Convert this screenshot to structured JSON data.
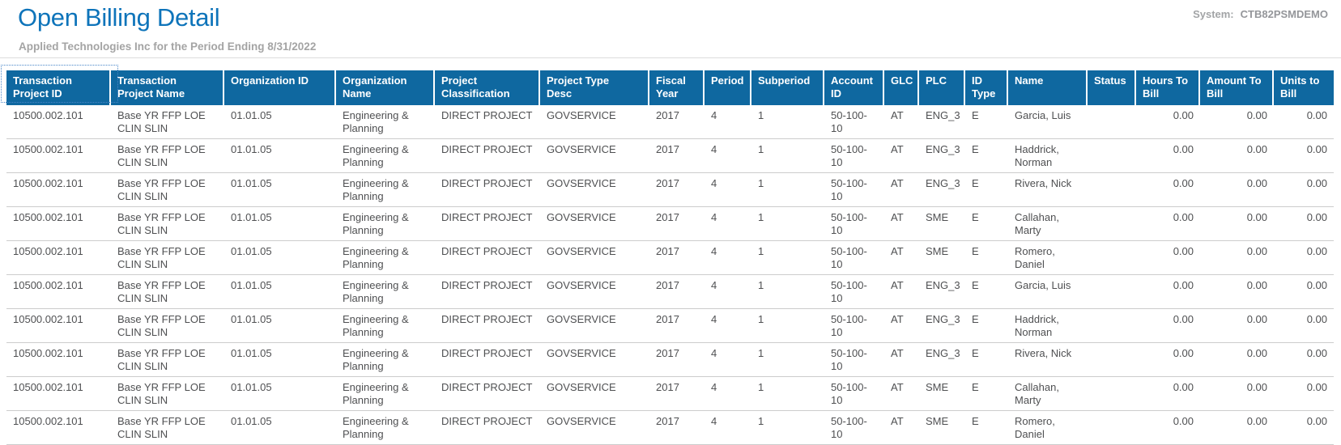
{
  "page": {
    "title": "Open Billing Detail",
    "subtitle": "Applied Technologies Inc for the Period Ending 8/31/2022",
    "system_label": "System:",
    "system_value": "CTB82PSMDEMO"
  },
  "colors": {
    "title_blue": "#0e74ba",
    "header_bg": "#0f68a0",
    "header_text": "#ffffff",
    "subtitle_gray": "#a4a4a4",
    "body_text": "#4f5052",
    "row_border": "#cccccc",
    "focus_outline": "#4a86c8"
  },
  "table": {
    "columns": [
      {
        "key": "txn_project_id",
        "label": "Transaction Project ID"
      },
      {
        "key": "txn_project_name",
        "label": "Transaction Project Name"
      },
      {
        "key": "org_id",
        "label": "Organization ID"
      },
      {
        "key": "org_name",
        "label": "Organization Name"
      },
      {
        "key": "project_classification",
        "label": "Project Classification"
      },
      {
        "key": "project_type_desc",
        "label": "Project Type Desc"
      },
      {
        "key": "fiscal_year",
        "label": "Fiscal Year"
      },
      {
        "key": "period",
        "label": "Period"
      },
      {
        "key": "subperiod",
        "label": "Subperiod"
      },
      {
        "key": "account_id",
        "label": "Account ID"
      },
      {
        "key": "glc",
        "label": "GLC"
      },
      {
        "key": "plc",
        "label": "PLC"
      },
      {
        "key": "id_type",
        "label": "ID Type"
      },
      {
        "key": "name",
        "label": "Name"
      },
      {
        "key": "status",
        "label": "Status"
      },
      {
        "key": "hours_to_bill",
        "label": "Hours To Bill"
      },
      {
        "key": "amount_to_bill",
        "label": "Amount To Bill"
      },
      {
        "key": "units_to_bill",
        "label": "Units to Bill"
      }
    ],
    "rows": [
      {
        "txn_project_id": "10500.002.101",
        "txn_project_name": "Base YR FFP LOE CLIN SLIN",
        "org_id": "01.01.05",
        "org_name": "Engineering & Planning",
        "project_classification": "DIRECT PROJECT",
        "project_type_desc": "GOVSERVICE",
        "fiscal_year": "2017",
        "period": "4",
        "subperiod": "1",
        "account_id": "50-100-10",
        "glc": "AT",
        "plc": "ENG_3",
        "id_type": "E",
        "name": "Garcia, Luis",
        "status": "",
        "hours_to_bill": "0.00",
        "amount_to_bill": "0.00",
        "units_to_bill": "0.00"
      },
      {
        "txn_project_id": "10500.002.101",
        "txn_project_name": "Base YR FFP LOE CLIN SLIN",
        "org_id": "01.01.05",
        "org_name": "Engineering & Planning",
        "project_classification": "DIRECT PROJECT",
        "project_type_desc": "GOVSERVICE",
        "fiscal_year": "2017",
        "period": "4",
        "subperiod": "1",
        "account_id": "50-100-10",
        "glc": "AT",
        "plc": "ENG_3",
        "id_type": "E",
        "name": "Haddrick, Norman",
        "status": "",
        "hours_to_bill": "0.00",
        "amount_to_bill": "0.00",
        "units_to_bill": "0.00"
      },
      {
        "txn_project_id": "10500.002.101",
        "txn_project_name": "Base YR FFP LOE CLIN SLIN",
        "org_id": "01.01.05",
        "org_name": "Engineering & Planning",
        "project_classification": "DIRECT PROJECT",
        "project_type_desc": "GOVSERVICE",
        "fiscal_year": "2017",
        "period": "4",
        "subperiod": "1",
        "account_id": "50-100-10",
        "glc": "AT",
        "plc": "ENG_3",
        "id_type": "E",
        "name": "Rivera, Nick",
        "status": "",
        "hours_to_bill": "0.00",
        "amount_to_bill": "0.00",
        "units_to_bill": "0.00"
      },
      {
        "txn_project_id": "10500.002.101",
        "txn_project_name": "Base YR FFP LOE CLIN SLIN",
        "org_id": "01.01.05",
        "org_name": "Engineering & Planning",
        "project_classification": "DIRECT PROJECT",
        "project_type_desc": "GOVSERVICE",
        "fiscal_year": "2017",
        "period": "4",
        "subperiod": "1",
        "account_id": "50-100-10",
        "glc": "AT",
        "plc": "SME",
        "id_type": "E",
        "name": "Callahan, Marty",
        "status": "",
        "hours_to_bill": "0.00",
        "amount_to_bill": "0.00",
        "units_to_bill": "0.00"
      },
      {
        "txn_project_id": "10500.002.101",
        "txn_project_name": "Base YR FFP LOE CLIN SLIN",
        "org_id": "01.01.05",
        "org_name": "Engineering & Planning",
        "project_classification": "DIRECT PROJECT",
        "project_type_desc": "GOVSERVICE",
        "fiscal_year": "2017",
        "period": "4",
        "subperiod": "1",
        "account_id": "50-100-10",
        "glc": "AT",
        "plc": "SME",
        "id_type": "E",
        "name": "Romero, Daniel",
        "status": "",
        "hours_to_bill": "0.00",
        "amount_to_bill": "0.00",
        "units_to_bill": "0.00"
      },
      {
        "txn_project_id": "10500.002.101",
        "txn_project_name": "Base YR FFP LOE CLIN SLIN",
        "org_id": "01.01.05",
        "org_name": "Engineering & Planning",
        "project_classification": "DIRECT PROJECT",
        "project_type_desc": "GOVSERVICE",
        "fiscal_year": "2017",
        "period": "4",
        "subperiod": "1",
        "account_id": "50-100-10",
        "glc": "AT",
        "plc": "ENG_3",
        "id_type": "E",
        "name": "Garcia, Luis",
        "status": "",
        "hours_to_bill": "0.00",
        "amount_to_bill": "0.00",
        "units_to_bill": "0.00"
      },
      {
        "txn_project_id": "10500.002.101",
        "txn_project_name": "Base YR FFP LOE CLIN SLIN",
        "org_id": "01.01.05",
        "org_name": "Engineering & Planning",
        "project_classification": "DIRECT PROJECT",
        "project_type_desc": "GOVSERVICE",
        "fiscal_year": "2017",
        "period": "4",
        "subperiod": "1",
        "account_id": "50-100-10",
        "glc": "AT",
        "plc": "ENG_3",
        "id_type": "E",
        "name": "Haddrick, Norman",
        "status": "",
        "hours_to_bill": "0.00",
        "amount_to_bill": "0.00",
        "units_to_bill": "0.00"
      },
      {
        "txn_project_id": "10500.002.101",
        "txn_project_name": "Base YR FFP LOE CLIN SLIN",
        "org_id": "01.01.05",
        "org_name": "Engineering & Planning",
        "project_classification": "DIRECT PROJECT",
        "project_type_desc": "GOVSERVICE",
        "fiscal_year": "2017",
        "period": "4",
        "subperiod": "1",
        "account_id": "50-100-10",
        "glc": "AT",
        "plc": "ENG_3",
        "id_type": "E",
        "name": "Rivera, Nick",
        "status": "",
        "hours_to_bill": "0.00",
        "amount_to_bill": "0.00",
        "units_to_bill": "0.00"
      },
      {
        "txn_project_id": "10500.002.101",
        "txn_project_name": "Base YR FFP LOE CLIN SLIN",
        "org_id": "01.01.05",
        "org_name": "Engineering & Planning",
        "project_classification": "DIRECT PROJECT",
        "project_type_desc": "GOVSERVICE",
        "fiscal_year": "2017",
        "period": "4",
        "subperiod": "1",
        "account_id": "50-100-10",
        "glc": "AT",
        "plc": "SME",
        "id_type": "E",
        "name": "Callahan, Marty",
        "status": "",
        "hours_to_bill": "0.00",
        "amount_to_bill": "0.00",
        "units_to_bill": "0.00"
      },
      {
        "txn_project_id": "10500.002.101",
        "txn_project_name": "Base YR FFP LOE CLIN SLIN",
        "org_id": "01.01.05",
        "org_name": "Engineering & Planning",
        "project_classification": "DIRECT PROJECT",
        "project_type_desc": "GOVSERVICE",
        "fiscal_year": "2017",
        "period": "4",
        "subperiod": "1",
        "account_id": "50-100-10",
        "glc": "AT",
        "plc": "SME",
        "id_type": "E",
        "name": "Romero, Daniel",
        "status": "",
        "hours_to_bill": "0.00",
        "amount_to_bill": "0.00",
        "units_to_bill": "0.00"
      }
    ]
  }
}
